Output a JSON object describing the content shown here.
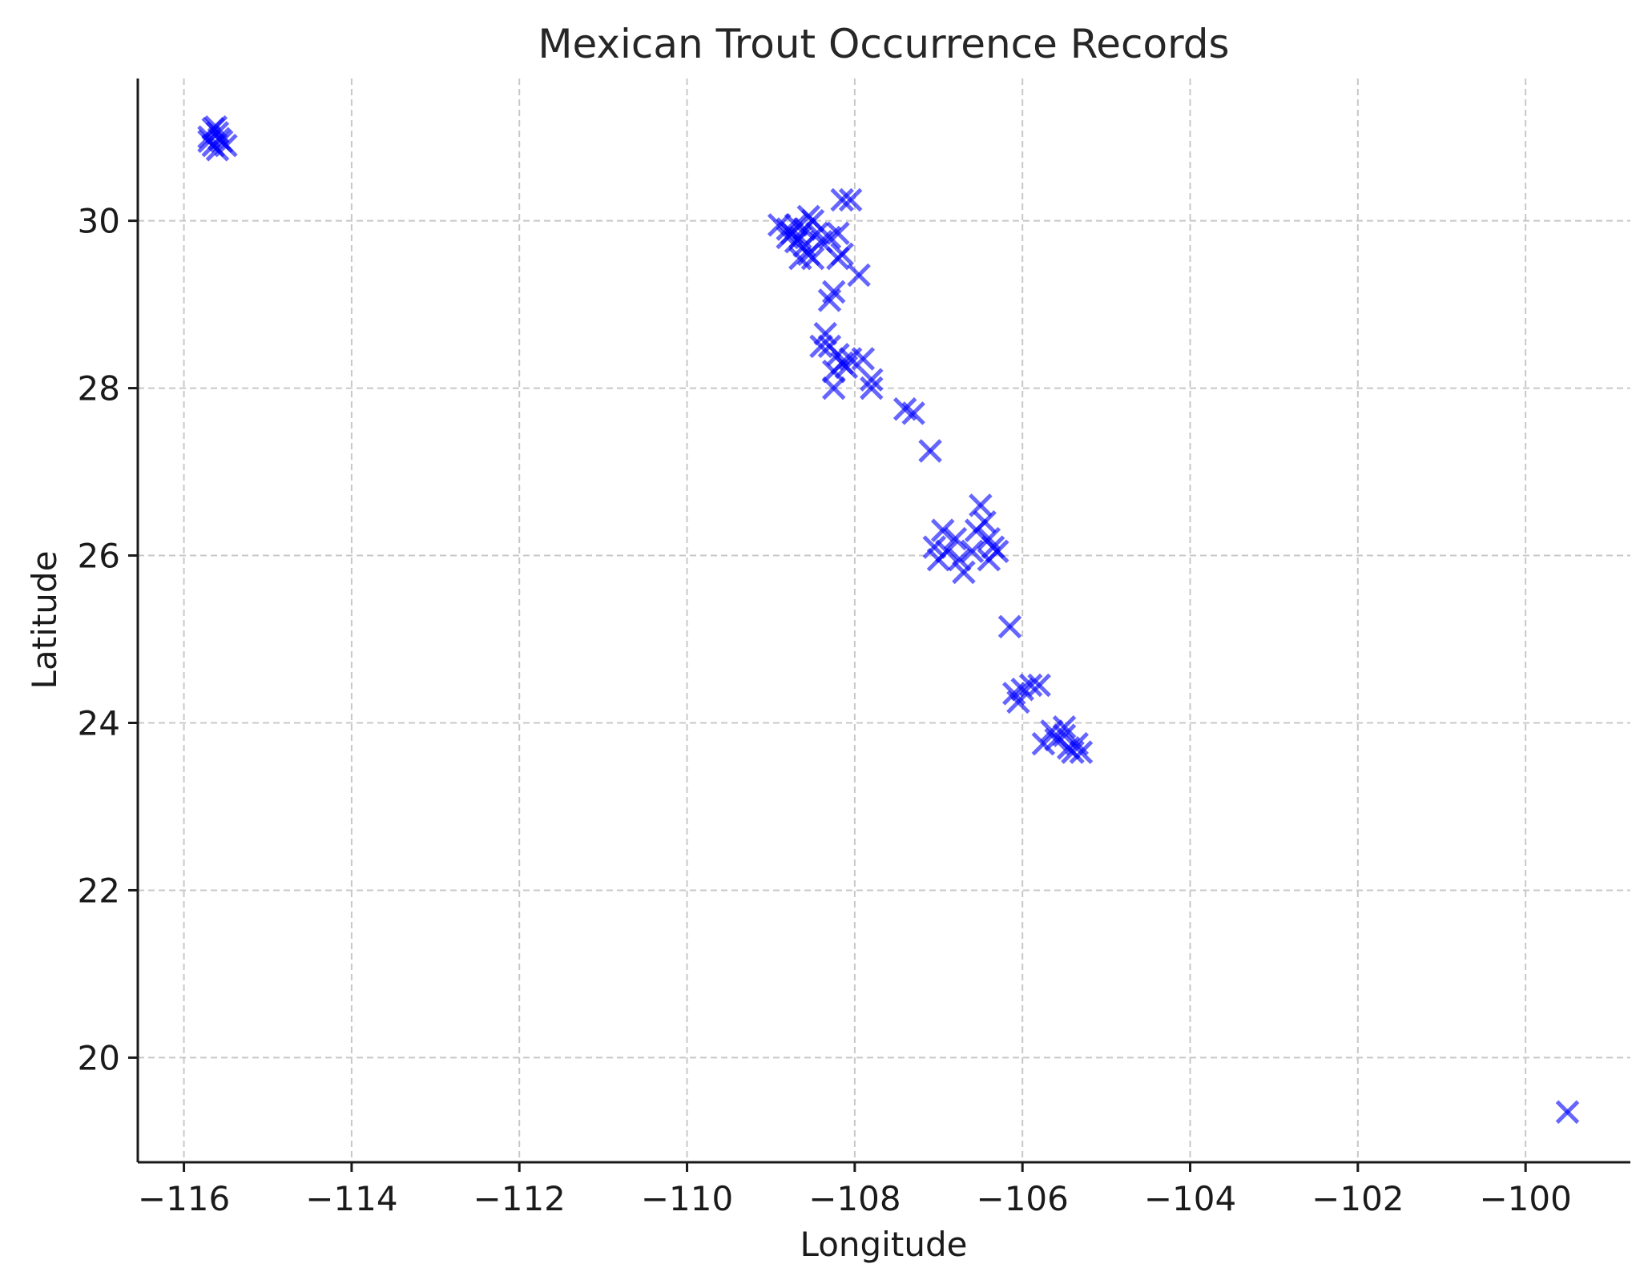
{
  "chart_data": {
    "type": "scatter",
    "title": "Mexican Trout Occurrence Records",
    "xlabel": "Longitude",
    "ylabel": "Latitude",
    "xlim": [
      -116.55,
      -98.75
    ],
    "ylim": [
      18.75,
      31.7
    ],
    "x_ticks": [
      -116,
      -114,
      -112,
      -110,
      -108,
      -106,
      -104,
      -102,
      -100
    ],
    "x_tick_labels": [
      "−116",
      "−114",
      "−112",
      "−110",
      "−108",
      "−106",
      "−104",
      "−102",
      "−100"
    ],
    "y_ticks": [
      20,
      22,
      24,
      26,
      28,
      30
    ],
    "y_tick_labels": [
      "20",
      "22",
      "24",
      "26",
      "28",
      "30"
    ],
    "grid": true,
    "marker": "x",
    "color": "#0000ff",
    "alpha": 0.6,
    "points": [
      [
        -115.65,
        31.1
      ],
      [
        -115.6,
        31.05
      ],
      [
        -115.7,
        31.0
      ],
      [
        -115.55,
        30.95
      ],
      [
        -115.65,
        30.9
      ],
      [
        -115.5,
        30.9
      ],
      [
        -115.6,
        30.85
      ],
      [
        -115.7,
        30.95
      ],
      [
        -115.62,
        31.12
      ],
      [
        -115.58,
        30.98
      ],
      [
        -108.9,
        29.95
      ],
      [
        -108.8,
        29.9
      ],
      [
        -108.75,
        29.85
      ],
      [
        -108.7,
        29.95
      ],
      [
        -108.65,
        29.8
      ],
      [
        -108.6,
        29.9
      ],
      [
        -108.55,
        30.05
      ],
      [
        -108.5,
        30.0
      ],
      [
        -108.45,
        29.85
      ],
      [
        -108.6,
        29.7
      ],
      [
        -108.55,
        29.6
      ],
      [
        -108.5,
        29.55
      ],
      [
        -108.65,
        29.55
      ],
      [
        -108.4,
        29.75
      ],
      [
        -108.3,
        29.8
      ],
      [
        -108.2,
        29.85
      ],
      [
        -108.15,
        29.6
      ],
      [
        -108.2,
        29.55
      ],
      [
        -108.8,
        29.8
      ],
      [
        -108.7,
        29.75
      ],
      [
        -108.15,
        30.25
      ],
      [
        -108.05,
        30.25
      ],
      [
        -108.3,
        29.05
      ],
      [
        -108.25,
        29.15
      ],
      [
        -107.95,
        29.35
      ],
      [
        -108.35,
        28.65
      ],
      [
        -108.4,
        28.5
      ],
      [
        -108.3,
        28.5
      ],
      [
        -108.2,
        28.4
      ],
      [
        -108.25,
        28.2
      ],
      [
        -108.15,
        28.3
      ],
      [
        -108.1,
        28.25
      ],
      [
        -108.05,
        28.35
      ],
      [
        -108.25,
        28.0
      ],
      [
        -107.9,
        28.35
      ],
      [
        -107.8,
        28.1
      ],
      [
        -107.8,
        28.0
      ],
      [
        -107.4,
        27.75
      ],
      [
        -107.3,
        27.7
      ],
      [
        -107.1,
        27.25
      ],
      [
        -107.05,
        26.1
      ],
      [
        -107.0,
        25.95
      ],
      [
        -106.95,
        26.3
      ],
      [
        -106.9,
        26.05
      ],
      [
        -106.8,
        26.2
      ],
      [
        -106.75,
        25.95
      ],
      [
        -106.7,
        25.8
      ],
      [
        -106.6,
        26.05
      ],
      [
        -106.5,
        26.6
      ],
      [
        -106.45,
        26.4
      ],
      [
        -106.4,
        26.2
      ],
      [
        -106.35,
        26.1
      ],
      [
        -106.4,
        25.95
      ],
      [
        -106.3,
        26.05
      ],
      [
        -106.55,
        26.3
      ],
      [
        -106.15,
        25.15
      ],
      [
        -106.1,
        24.35
      ],
      [
        -106.05,
        24.25
      ],
      [
        -106.0,
        24.4
      ],
      [
        -105.9,
        24.45
      ],
      [
        -105.8,
        24.45
      ],
      [
        -105.75,
        23.75
      ],
      [
        -105.65,
        23.9
      ],
      [
        -105.6,
        23.8
      ],
      [
        -105.5,
        23.85
      ],
      [
        -105.45,
        23.7
      ],
      [
        -105.4,
        23.65
      ],
      [
        -105.35,
        23.75
      ],
      [
        -105.3,
        23.65
      ],
      [
        -105.5,
        23.95
      ],
      [
        -99.5,
        19.35
      ]
    ]
  }
}
